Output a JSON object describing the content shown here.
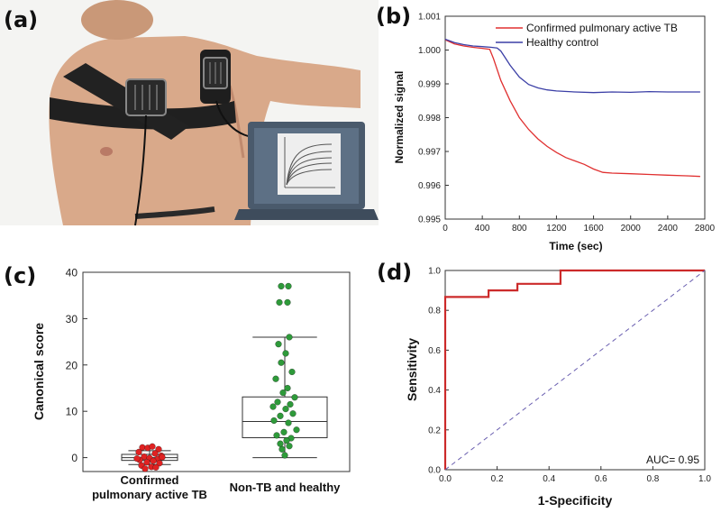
{
  "panels": {
    "a": "(a)",
    "b": "(b)",
    "c": "(c)",
    "d": "(d)"
  },
  "chart_data": [
    {
      "panel": "b",
      "type": "line",
      "xlabel": "Time (sec)",
      "ylabel": "Normalized signal",
      "xlim": [
        0,
        2800
      ],
      "ylim": [
        0.995,
        1.001
      ],
      "xticks": [
        0,
        400,
        800,
        1200,
        1600,
        2000,
        2400,
        2800
      ],
      "yticks": [
        0.995,
        0.996,
        0.997,
        0.998,
        0.999,
        1.0,
        1.001
      ],
      "ytick_labels": [
        "0.995",
        "0.996",
        "0.997",
        "0.998",
        "0.999",
        "1.000",
        "1.001"
      ],
      "legend_position": "top-right",
      "series": [
        {
          "name": "Confirmed pulmonary active TB",
          "color": "#e03030",
          "x": [
            0,
            100,
            200,
            300,
            400,
            480,
            520,
            600,
            700,
            800,
            900,
            1000,
            1100,
            1200,
            1300,
            1400,
            1500,
            1600,
            1700,
            1800,
            2000,
            2200,
            2400,
            2600,
            2750
          ],
          "y": [
            1.0003,
            1.00018,
            1.00012,
            1.00008,
            1.00005,
            1.00002,
            0.99975,
            0.9991,
            0.9985,
            0.998,
            0.99765,
            0.99737,
            0.99715,
            0.99697,
            0.99682,
            0.99672,
            0.99662,
            0.99648,
            0.99638,
            0.99636,
            0.99634,
            0.99632,
            0.9963,
            0.99628,
            0.99626
          ]
        },
        {
          "name": "Healthy control",
          "color": "#3b3fa6",
          "x": [
            0,
            100,
            200,
            300,
            400,
            500,
            560,
            600,
            650,
            700,
            800,
            900,
            1000,
            1100,
            1200,
            1400,
            1600,
            1800,
            2000,
            2200,
            2400,
            2600,
            2750
          ],
          "y": [
            1.00032,
            1.00022,
            1.00016,
            1.00012,
            1.0001,
            1.00008,
            1.00006,
            0.99997,
            0.99976,
            0.99955,
            0.9992,
            0.99898,
            0.99888,
            0.99882,
            0.99879,
            0.99876,
            0.99874,
            0.99876,
            0.99875,
            0.99877,
            0.99876,
            0.99876,
            0.99876
          ]
        }
      ]
    },
    {
      "panel": "c",
      "type": "box",
      "ylabel": "Canonical score",
      "ylim": [
        -3,
        40
      ],
      "yticks": [
        0,
        10,
        20,
        30,
        40
      ],
      "groups": [
        {
          "label_lines": [
            "Confirmed",
            "pulmonary active TB"
          ],
          "color": "#e02222",
          "box": {
            "whisker_low": -1.5,
            "q1": -0.6,
            "median": 0.0,
            "q3": 0.7,
            "whisker_high": 1.5
          },
          "points": [
            [
              -8,
              2.2
            ],
            [
              -2,
              2.1
            ],
            [
              3,
              2.4
            ],
            [
              10,
              1.8
            ],
            [
              -12,
              1.2
            ],
            [
              6,
              0.9
            ],
            [
              13,
              0.4
            ],
            [
              -6,
              0.2
            ],
            [
              0,
              -0.1
            ],
            [
              9,
              -0.3
            ],
            [
              -11,
              -0.5
            ],
            [
              4,
              -0.7
            ],
            [
              -3,
              -1.0
            ],
            [
              11,
              -1.2
            ],
            [
              -9,
              -1.7
            ],
            [
              2,
              -2.0
            ],
            [
              -5,
              -2.4
            ],
            [
              7,
              -2.1
            ],
            [
              -14,
              -0.2
            ],
            [
              14,
              0.1
            ]
          ]
        },
        {
          "label_lines": [
            "Non-TB and healthy"
          ],
          "color": "#2e9a3a",
          "box": {
            "whisker_low": 0,
            "q1": 4.3,
            "median": 7.8,
            "q3": 13.1,
            "whisker_high": 26
          },
          "points": [
            [
              -4,
              37
            ],
            [
              4,
              37
            ],
            [
              -6,
              33.5
            ],
            [
              3,
              33.5
            ],
            [
              5,
              26
            ],
            [
              -7,
              24.5
            ],
            [
              1,
              22.5
            ],
            [
              -4,
              20.5
            ],
            [
              8,
              18.5
            ],
            [
              -10,
              17
            ],
            [
              3,
              15
            ],
            [
              -2,
              14
            ],
            [
              11,
              13
            ],
            [
              -8,
              12
            ],
            [
              6,
              11.5
            ],
            [
              -13,
              11
            ],
            [
              1,
              10.5
            ],
            [
              9,
              9.5
            ],
            [
              -5,
              9
            ],
            [
              -12,
              8
            ],
            [
              4,
              7.5
            ],
            [
              13,
              6
            ],
            [
              -1,
              5.5
            ],
            [
              -9,
              4.8
            ],
            [
              7,
              4.2
            ],
            [
              2,
              3.7
            ],
            [
              -5,
              3
            ],
            [
              5,
              2.5
            ],
            [
              -3,
              1.8
            ],
            [
              0,
              0.5
            ]
          ]
        }
      ]
    },
    {
      "panel": "d",
      "type": "line",
      "xlabel": "1-Specificity",
      "ylabel": "Sensitivity",
      "xlim": [
        0,
        1
      ],
      "ylim": [
        0,
        1
      ],
      "xticks": [
        0.0,
        0.2,
        0.4,
        0.6,
        0.8,
        1.0
      ],
      "yticks": [
        0.0,
        0.2,
        0.4,
        0.6,
        0.8,
        1.0
      ],
      "tick_labels": [
        "0.0",
        "0.2",
        "0.4",
        "0.6",
        "0.8",
        "1.0"
      ],
      "annotation": "AUC= 0.95",
      "series": [
        {
          "role": "roc",
          "color": "#cc2a2a",
          "x": [
            0,
            0,
            0.167,
            0.167,
            0.278,
            0.278,
            0.444,
            0.444,
            1.0
          ],
          "y": [
            0,
            0.867,
            0.867,
            0.9,
            0.9,
            0.933,
            0.933,
            1.0,
            1.0
          ]
        },
        {
          "role": "reference",
          "color": "#6a5fb0",
          "x": [
            0,
            1
          ],
          "y": [
            0,
            1
          ]
        }
      ]
    }
  ]
}
